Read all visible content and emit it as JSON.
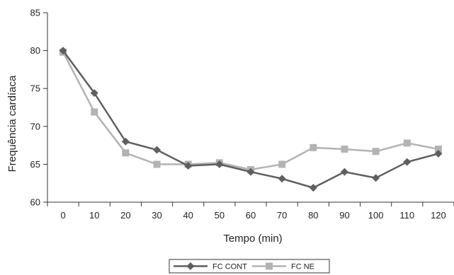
{
  "chart_data": {
    "type": "line",
    "title": "",
    "xlabel": "Tempo (min)",
    "ylabel": "Frequência cardíaca",
    "x": [
      0,
      10,
      20,
      30,
      40,
      50,
      60,
      70,
      80,
      90,
      100,
      110,
      120
    ],
    "ylim": [
      60,
      85
    ],
    "yticks": [
      60,
      65,
      70,
      75,
      80,
      85
    ],
    "grid": false,
    "legend_position": "bottom",
    "series": [
      {
        "name": "FC CONT",
        "marker": "diamond",
        "color": "#5f5f5f",
        "values": [
          80.0,
          74.4,
          68.0,
          66.9,
          64.8,
          65.0,
          64.0,
          63.1,
          61.9,
          64.0,
          63.2,
          65.3,
          66.4
        ]
      },
      {
        "name": "FC NE",
        "marker": "square",
        "color": "#b3b3b3",
        "values": [
          79.8,
          71.9,
          66.5,
          65.0,
          65.0,
          65.2,
          64.3,
          65.0,
          67.2,
          67.0,
          66.7,
          67.8,
          67.0
        ]
      }
    ]
  }
}
